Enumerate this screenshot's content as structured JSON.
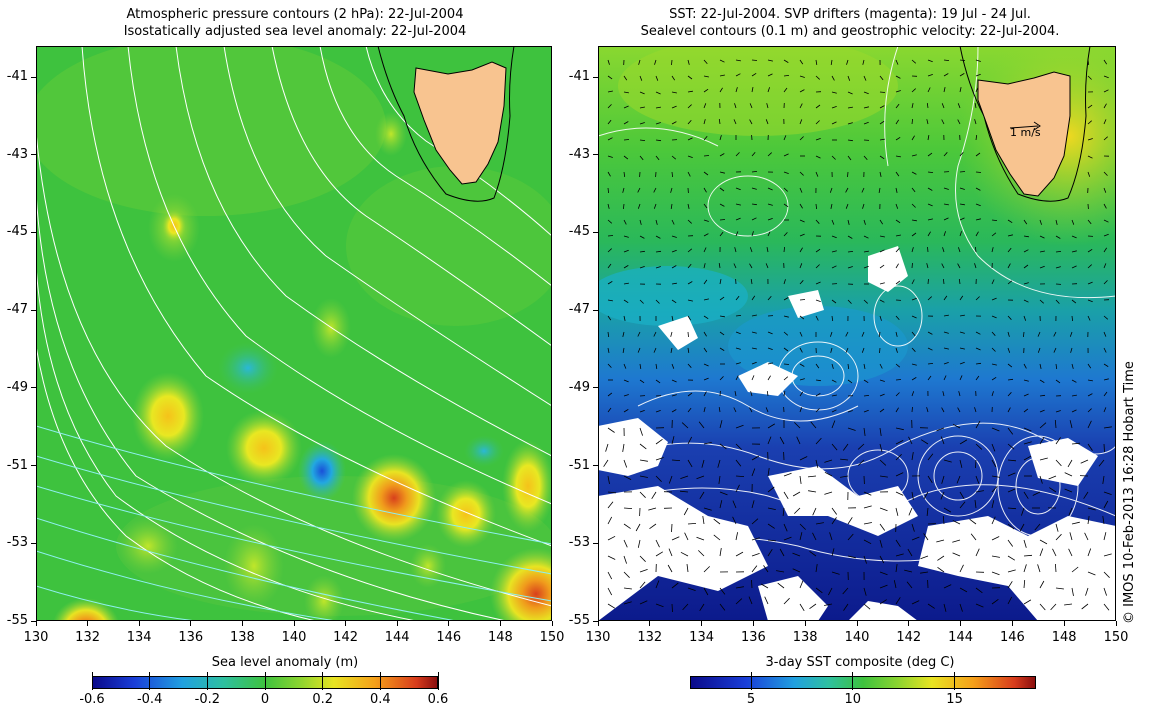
{
  "left_panel": {
    "title_line1": "Atmospheric pressure contours (2 hPa): 22-Jul-2004",
    "title_line2": "Isostatically adjusted sea level anomaly: 22-Jul-2004",
    "colorbar_title": "Sea level anomaly (m)",
    "colorbar_ticks": [
      "-0.6",
      "-0.4",
      "-0.2",
      "0",
      "0.2",
      "0.4",
      "0.6"
    ]
  },
  "right_panel": {
    "title_line1": "SST: 22-Jul-2004. SVP drifters (magenta): 19 Jul - 24 Jul.",
    "title_line2": "Sealevel contours (0.1 m) and geostrophic velocity: 22-Jul-2004.",
    "colorbar_title": "3-day SST composite (deg C)",
    "colorbar_ticks": [
      "5",
      "10",
      "15"
    ],
    "velocity_reference": "1 m/s"
  },
  "axes": {
    "x_ticks": [
      "130",
      "132",
      "134",
      "136",
      "138",
      "140",
      "142",
      "144",
      "146",
      "148",
      "150"
    ],
    "y_ticks": [
      "-41",
      "-43",
      "-45",
      "-47",
      "-49",
      "-51",
      "-53",
      "-55"
    ],
    "lon_range": [
      130,
      150
    ],
    "lat_range": [
      -55,
      -40.2
    ]
  },
  "credit": "© IMOS 10-Feb-2013 16:28 Hobart Time",
  "colors": {
    "land": "#f8c490",
    "ocean_green": "#3cc044",
    "sst_blue": "#1a3fb0",
    "cold_blue": "#0c1a8c",
    "contour": "#ffffff"
  }
}
